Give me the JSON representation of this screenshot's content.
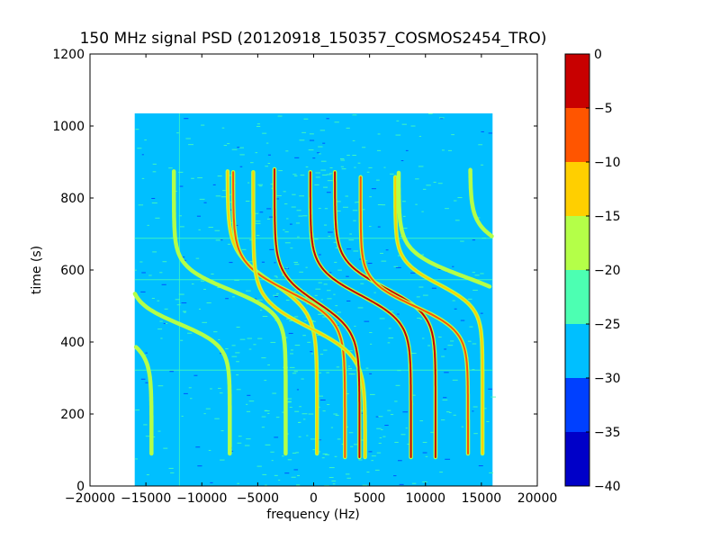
{
  "chart_data": {
    "type": "heatmap",
    "title": "150 MHz signal PSD (20120918_150357_COSMOS2454_TRO)",
    "xlabel": "frequency (Hz)",
    "ylabel": "time (s)",
    "xlim": [
      -20000,
      20000
    ],
    "ylim": [
      0,
      1200
    ],
    "x_ticks": [
      -20000,
      -15000,
      -10000,
      -5000,
      0,
      5000,
      10000,
      15000,
      20000
    ],
    "x_tick_labels": [
      "−20000",
      "−15000",
      "−10000",
      "−5000",
      "0",
      "5000",
      "10000",
      "15000",
      "20000"
    ],
    "y_ticks": [
      0,
      200,
      400,
      600,
      800,
      1000,
      1200
    ],
    "y_tick_labels": [
      "0",
      "200",
      "400",
      "600",
      "800",
      "1000",
      "1200"
    ],
    "data_extent": {
      "x": [
        -16000,
        16000
      ],
      "y": [
        0,
        1035
      ]
    },
    "background_level": -27.5,
    "noise_floor_colors": [
      "#00bfff",
      "#4cffb2",
      "#0040ff"
    ],
    "colorbar": {
      "label": "",
      "levels": [
        0,
        -5,
        -10,
        -15,
        -20,
        -25,
        -30,
        -35,
        -40
      ],
      "tick_labels": [
        "0",
        "−5",
        "−10",
        "−15",
        "−20",
        "−25",
        "−30",
        "−35",
        "−40"
      ],
      "bands": [
        {
          "range": [
            -5,
            0
          ],
          "color": "#c80000"
        },
        {
          "range": [
            -10,
            -5
          ],
          "color": "#ff5500"
        },
        {
          "range": [
            -15,
            -10
          ],
          "color": "#ffcf00"
        },
        {
          "range": [
            -20,
            -15
          ],
          "color": "#b4ff48"
        },
        {
          "range": [
            -25,
            -20
          ],
          "color": "#4cffb2"
        },
        {
          "range": [
            -30,
            -25
          ],
          "color": "#00bfff"
        },
        {
          "range": [
            -35,
            -30
          ],
          "color": "#0040ff"
        },
        {
          "range": [
            -40,
            -35
          ],
          "color": "#0000c8"
        }
      ]
    },
    "features": {
      "horizontal_lines": [
        {
          "time": 688,
          "x_range": [
            -16000,
            16000
          ]
        },
        {
          "time": 573,
          "x_range": [
            -16000,
            16000
          ]
        },
        {
          "time": 322,
          "x_range": [
            -16000,
            16000
          ]
        }
      ],
      "vertical_lines": [
        {
          "frequency": -12000,
          "t_range": [
            0,
            1035
          ]
        }
      ],
      "tracks": [
        {
          "center_f": -12000,
          "t0": 450,
          "amplitude": 4500,
          "tau": 60,
          "t_start": 90,
          "t_end": 875,
          "level": -20,
          "x_min": -16000,
          "x_max": 16000
        },
        {
          "center_f": -7500,
          "t0": 545,
          "amplitude": 5000,
          "tau": 65,
          "t_start": 90,
          "t_end": 875,
          "level": -18,
          "x_min": -16000,
          "x_max": 16000
        },
        {
          "center_f": -3700,
          "t0": 565,
          "amplitude": 4000,
          "tau": 85,
          "t_start": 90,
          "t_end": 875,
          "level": -14,
          "x_min": -16000,
          "x_max": 16000
        },
        {
          "center_f": -2200,
          "t0": 540,
          "amplitude": 5000,
          "tau": 80,
          "t_start": 80,
          "t_end": 875,
          "level": -6,
          "x_min": -16000,
          "x_max": 16000
        },
        {
          "center_f": -400,
          "t0": 440,
          "amplitude": 5000,
          "tau": 80,
          "t_start": 80,
          "t_end": 875,
          "level": -15,
          "x_min": -16000,
          "x_max": 16000
        },
        {
          "center_f": 300,
          "t0": 510,
          "amplitude": 3800,
          "tau": 80,
          "t_start": 80,
          "t_end": 880,
          "level": -4,
          "x_min": -16000,
          "x_max": 16000
        },
        {
          "center_f": 4200,
          "t0": 530,
          "amplitude": 4500,
          "tau": 75,
          "t_start": 80,
          "t_end": 875,
          "level": -4,
          "x_min": -16000,
          "x_max": 16000
        },
        {
          "center_f": 6400,
          "t0": 550,
          "amplitude": 4500,
          "tau": 75,
          "t_start": 80,
          "t_end": 875,
          "level": -4,
          "x_min": -16000,
          "x_max": 16000
        },
        {
          "center_f": 9000,
          "t0": 500,
          "amplitude": 4800,
          "tau": 70,
          "t_start": 90,
          "t_end": 860,
          "level": -10,
          "x_min": -16000,
          "x_max": 16000
        },
        {
          "center_f": 11200,
          "t0": 560,
          "amplitude": 3900,
          "tau": 65,
          "t_start": 90,
          "t_end": 860,
          "level": -14,
          "x_min": -16000,
          "x_max": 16000
        },
        {
          "center_f": 13600,
          "t0": 580,
          "amplitude": 6000,
          "tau": 70,
          "t_start": 90,
          "t_end": 870,
          "level": -18,
          "x_min": -16000,
          "x_max": 16000
        },
        {
          "center_f": 19500,
          "t0": 640,
          "amplitude": 5500,
          "tau": 70,
          "t_start": 90,
          "t_end": 880,
          "level": -18,
          "x_min": -16000,
          "x_max": 16000
        },
        {
          "center_f": -19500,
          "t0": 450,
          "amplitude": 5000,
          "tau": 70,
          "t_start": 90,
          "t_end": 880,
          "level": -18,
          "x_min": -16000,
          "x_max": 16000
        }
      ]
    }
  }
}
